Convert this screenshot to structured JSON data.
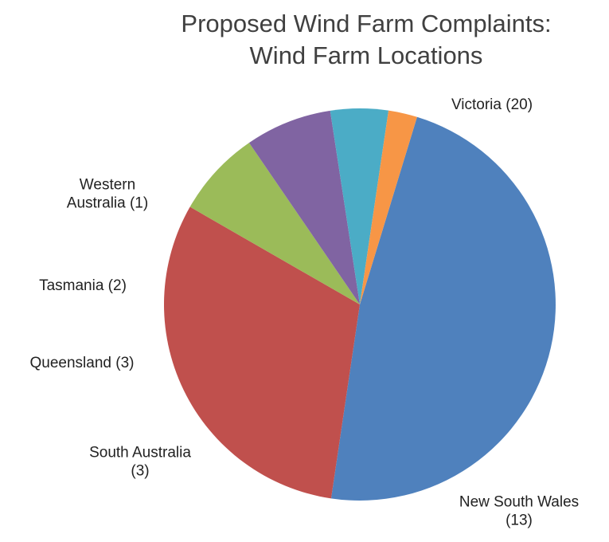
{
  "chart_data": {
    "type": "pie",
    "title": [
      "Proposed Wind Farm Complaints:",
      "Wind Farm Locations"
    ],
    "slices": [
      {
        "name": "Victoria",
        "value": 20,
        "color": "#4F81BD",
        "label": [
          "Victoria (20)"
        ]
      },
      {
        "name": "New South Wales",
        "value": 13,
        "color": "#C0504D",
        "label": [
          "New South Wales",
          "(13)"
        ]
      },
      {
        "name": "South Australia",
        "value": 3,
        "color": "#9BBB59",
        "label": [
          "South Australia",
          "(3)"
        ]
      },
      {
        "name": "Queensland",
        "value": 3,
        "color": "#8064A2",
        "label": [
          "Queensland (3)"
        ]
      },
      {
        "name": "Tasmania",
        "value": 2,
        "color": "#4BACC6",
        "label": [
          "Tasmania (2)"
        ]
      },
      {
        "name": "Western Australia",
        "value": 1,
        "color": "#F79646",
        "label": [
          "Western",
          "Australia (1)"
        ]
      }
    ],
    "start_angle_deg": 17,
    "direction": "clockwise",
    "legend": "none"
  }
}
